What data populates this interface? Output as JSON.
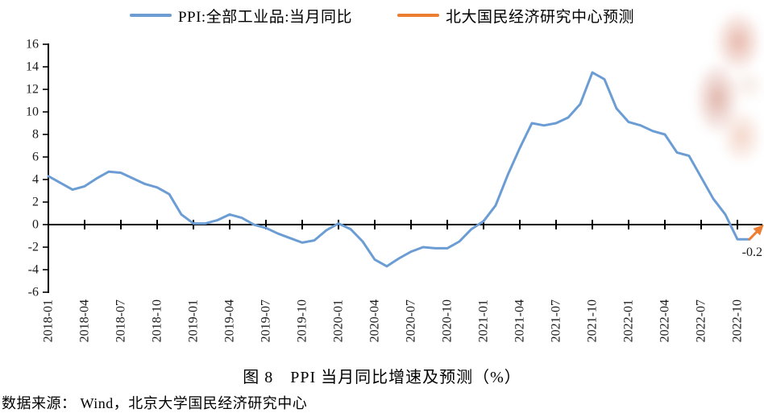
{
  "caption": "图 8　PPI 当月同比增速及预测（%）",
  "source": "数据来源：  Wind，北京大学国民经济研究中心",
  "colors": {
    "ppi_line": "#6B9DD4",
    "forecast_line": "#ED7D31",
    "axis": "#000000"
  },
  "chart_data": {
    "type": "line",
    "title": "图 8　PPI 当月同比增速及预测（%）",
    "xlabel": "",
    "ylabel": "",
    "ylim": [
      -6,
      16
    ],
    "ytick_step": 2,
    "yticks": [
      16,
      14,
      12,
      10,
      8,
      6,
      4,
      2,
      0,
      -2,
      -4,
      -6
    ],
    "grid": false,
    "legend_position": "top",
    "xticks": [
      "2018-01",
      "2018-04",
      "2018-07",
      "2018-10",
      "2019-01",
      "2019-04",
      "2019-07",
      "2019-10",
      "2020-01",
      "2020-04",
      "2020-07",
      "2020-10",
      "2021-01",
      "2021-04",
      "2021-07",
      "2021-10",
      "2022-01",
      "2022-04",
      "2022-07",
      "2022-10"
    ],
    "x": [
      "2018-01",
      "2018-02",
      "2018-03",
      "2018-04",
      "2018-05",
      "2018-06",
      "2018-07",
      "2018-08",
      "2018-09",
      "2018-10",
      "2018-11",
      "2018-12",
      "2019-01",
      "2019-02",
      "2019-03",
      "2019-04",
      "2019-05",
      "2019-06",
      "2019-07",
      "2019-08",
      "2019-09",
      "2019-10",
      "2019-11",
      "2019-12",
      "2020-01",
      "2020-02",
      "2020-03",
      "2020-04",
      "2020-05",
      "2020-06",
      "2020-07",
      "2020-08",
      "2020-09",
      "2020-10",
      "2020-11",
      "2020-12",
      "2021-01",
      "2021-02",
      "2021-03",
      "2021-04",
      "2021-05",
      "2021-06",
      "2021-07",
      "2021-08",
      "2021-09",
      "2021-10",
      "2021-11",
      "2021-12",
      "2022-01",
      "2022-02",
      "2022-03",
      "2022-04",
      "2022-05",
      "2022-06",
      "2022-07",
      "2022-08",
      "2022-09",
      "2022-10",
      "2022-11"
    ],
    "series": [
      {
        "name": "PPI:全部工业品:当月同比",
        "color": "#6B9DD4",
        "values": [
          4.3,
          3.7,
          3.1,
          3.4,
          4.1,
          4.7,
          4.6,
          4.1,
          3.6,
          3.3,
          2.7,
          0.9,
          0.1,
          0.1,
          0.4,
          0.9,
          0.6,
          0.0,
          -0.3,
          -0.8,
          -1.2,
          -1.6,
          -1.4,
          -0.5,
          0.1,
          -0.4,
          -1.5,
          -3.1,
          -3.7,
          -3.0,
          -2.4,
          -2.0,
          -2.1,
          -2.1,
          -1.5,
          -0.4,
          0.3,
          1.7,
          4.4,
          6.8,
          9.0,
          8.8,
          9.0,
          9.5,
          10.7,
          13.5,
          12.9,
          10.3,
          9.1,
          8.8,
          8.3,
          8.0,
          6.4,
          6.1,
          4.2,
          2.3,
          0.9,
          -1.3,
          -1.3
        ]
      },
      {
        "name": "北大国民经济研究中心预测",
        "color": "#ED7D31",
        "x": [
          "2022-11",
          "2022-12"
        ],
        "values": [
          -1.3,
          -0.2
        ]
      }
    ],
    "annotations": [
      {
        "text": "-0.2",
        "x": "2022-12",
        "y": -0.2
      }
    ]
  }
}
